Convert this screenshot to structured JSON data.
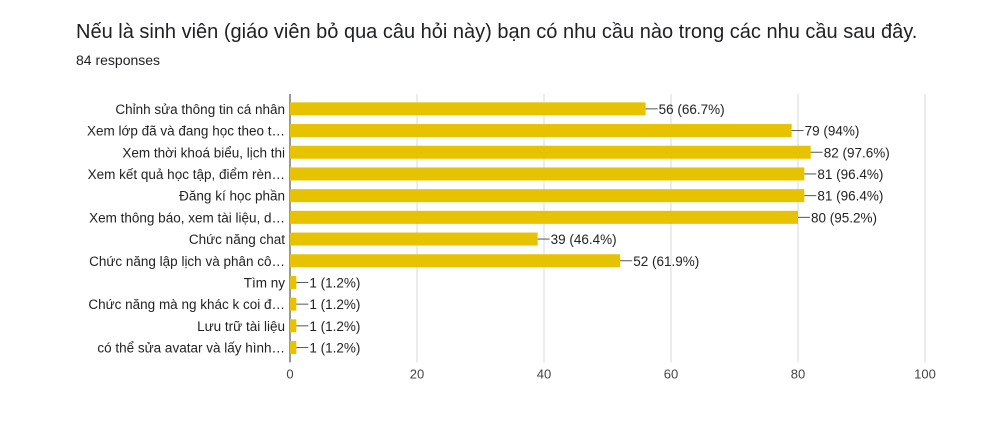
{
  "header": {
    "title": "Nếu là sinh viên (giáo viên bỏ qua câu hỏi này) bạn có nhu cầu nào trong các nhu cầu sau đây.",
    "responses": "84 responses"
  },
  "chart_data": {
    "type": "bar",
    "orientation": "horizontal",
    "categories": [
      "Chỉnh sửa thông tin cá nhân",
      "Xem lớp đã và đang học theo t…",
      "Xem thời khoá biểu, lịch thi",
      "Xem kết quả học tập, điểm rèn…",
      "Đăng kí học phần",
      "Xem thông báo, xem tài liệu, d…",
      "Chức năng chat",
      "Chức năng lập lịch và phân cô…",
      "Tìm ny",
      "Chức năng mà ng khác k coi đ…",
      "Lưu trữ tài liệu",
      "có thể sửa avatar và lấy hình…"
    ],
    "values": [
      56,
      79,
      82,
      81,
      81,
      80,
      39,
      52,
      1,
      1,
      1,
      1
    ],
    "value_labels": [
      "56 (66.7%)",
      "79 (94%)",
      "82 (97.6%)",
      "81 (96.4%)",
      "81 (96.4%)",
      "80 (95.2%)",
      "39 (46.4%)",
      "52 (61.9%)",
      "1 (1.2%)",
      "1 (1.2%)",
      "1 (1.2%)",
      "1 (1.2%)"
    ],
    "xlim": [
      0,
      100
    ],
    "xticks": [
      0,
      20,
      40,
      60,
      80,
      100
    ],
    "grid": true,
    "bar_color": "#e6c200"
  }
}
